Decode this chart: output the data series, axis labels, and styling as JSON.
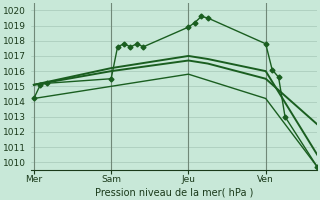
{
  "xlabel": "Pression niveau de la mer( hPa )",
  "ylim": [
    1009.5,
    1020.5
  ],
  "yticks": [
    1010,
    1011,
    1012,
    1013,
    1014,
    1015,
    1016,
    1017,
    1018,
    1019,
    1020
  ],
  "bg_color": "#c8e8d8",
  "grid_color": "#9dbfaf",
  "line_color": "#1a5e20",
  "day_labels": [
    "Mer",
    "Sam",
    "Jeu",
    "Ven"
  ],
  "day_positions": [
    0,
    12,
    24,
    36
  ],
  "xlim": [
    -0.5,
    44
  ],
  "lines": [
    {
      "x": [
        0,
        1,
        2,
        12,
        13,
        14,
        15,
        16,
        17,
        24,
        25,
        26,
        27,
        36,
        37,
        38,
        39,
        44
      ],
      "y": [
        1014.2,
        1015.1,
        1015.2,
        1015.5,
        1017.6,
        1017.8,
        1017.6,
        1017.8,
        1017.6,
        1018.9,
        1019.2,
        1019.6,
        1019.5,
        1017.8,
        1016.1,
        1015.6,
        1013.0,
        1009.7
      ],
      "marker": "D",
      "lw": 1.0,
      "ms": 2.5
    },
    {
      "x": [
        0,
        12,
        24,
        27,
        36,
        44
      ],
      "y": [
        1015.1,
        1016.2,
        1017.0,
        1016.8,
        1016.0,
        1010.5
      ],
      "marker": null,
      "lw": 1.4,
      "ms": 0
    },
    {
      "x": [
        0,
        12,
        24,
        27,
        36,
        44
      ],
      "y": [
        1015.1,
        1016.0,
        1016.7,
        1016.5,
        1015.5,
        1012.5
      ],
      "marker": null,
      "lw": 1.4,
      "ms": 0
    },
    {
      "x": [
        0,
        24,
        36,
        44
      ],
      "y": [
        1014.2,
        1015.8,
        1014.2,
        1009.7
      ],
      "marker": null,
      "lw": 1.0,
      "ms": 0
    }
  ],
  "vline_color": "#708878",
  "xlabel_fontsize": 7,
  "tick_fontsize": 6.5
}
